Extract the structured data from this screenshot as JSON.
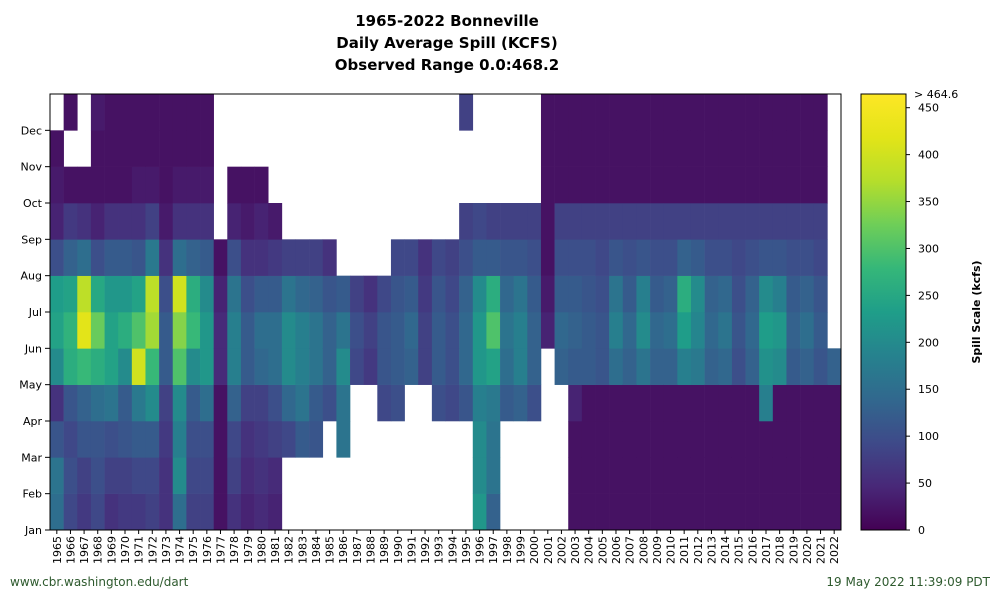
{
  "chart_data": {
    "type": "heatmap",
    "title_lines": [
      "1965-2022 Bonneville",
      "Daily Average Spill (KCFS)",
      "Observed Range 0.0:468.2"
    ],
    "x_categories": [
      "1965",
      "1966",
      "1967",
      "1968",
      "1969",
      "1970",
      "1971",
      "1972",
      "1973",
      "1974",
      "1975",
      "1976",
      "1977",
      "1978",
      "1979",
      "1980",
      "1981",
      "1982",
      "1983",
      "1984",
      "1985",
      "1986",
      "1987",
      "1988",
      "1989",
      "1990",
      "1991",
      "1992",
      "1993",
      "1994",
      "1995",
      "1996",
      "1997",
      "1998",
      "1999",
      "2000",
      "2001",
      "2002",
      "2003",
      "2004",
      "2005",
      "2006",
      "2007",
      "2008",
      "2009",
      "2010",
      "2011",
      "2012",
      "2013",
      "2014",
      "2015",
      "2016",
      "2017",
      "2018",
      "2019",
      "2020",
      "2021",
      "2022"
    ],
    "y_labels": [
      "Jan",
      "Feb",
      "Mar",
      "Apr",
      "May",
      "Jun",
      "Jul",
      "Aug",
      "Sep",
      "Oct",
      "Nov",
      "Dec"
    ],
    "colorbar": {
      "label": "Spill Scale (kcfs)",
      "ticks": [
        0,
        50,
        100,
        150,
        200,
        250,
        300,
        350,
        400,
        450
      ],
      "max_label": "> 464.6",
      "vmin": 0,
      "vmax": 464.6
    },
    "monthly_estimates": {
      "1965": [
        150,
        160,
        110,
        60,
        200,
        240,
        230,
        100,
        40,
        30,
        20,
        null
      ],
      "1966": [
        90,
        100,
        90,
        110,
        260,
        270,
        240,
        130,
        70,
        20,
        null,
        20
      ],
      "1967": [
        70,
        80,
        110,
        130,
        280,
        420,
        380,
        150,
        60,
        20,
        null,
        null
      ],
      "1968": [
        90,
        100,
        110,
        150,
        260,
        320,
        250,
        100,
        40,
        20,
        20,
        30
      ],
      "1969": [
        60,
        80,
        100,
        160,
        240,
        240,
        220,
        120,
        60,
        20,
        20,
        20
      ],
      "1970": [
        70,
        80,
        110,
        120,
        200,
        260,
        220,
        120,
        60,
        20,
        20,
        20
      ],
      "1971": [
        70,
        90,
        120,
        170,
        400,
        300,
        240,
        110,
        60,
        30,
        20,
        20
      ],
      "1972": [
        80,
        90,
        120,
        200,
        280,
        360,
        380,
        170,
        80,
        30,
        20,
        20
      ],
      "1973": [
        60,
        60,
        70,
        80,
        120,
        120,
        100,
        60,
        30,
        20,
        20,
        20
      ],
      "1974": [
        150,
        200,
        180,
        200,
        300,
        340,
        400,
        150,
        60,
        30,
        20,
        20
      ],
      "1975": [
        80,
        90,
        100,
        120,
        200,
        280,
        260,
        130,
        60,
        30,
        20,
        20
      ],
      "1976": [
        80,
        90,
        100,
        150,
        220,
        220,
        200,
        120,
        60,
        30,
        20,
        20
      ],
      "1977": [
        20,
        20,
        20,
        20,
        50,
        50,
        40,
        20,
        null,
        null,
        null,
        null
      ],
      "1978": [
        60,
        80,
        90,
        130,
        180,
        180,
        160,
        100,
        40,
        20,
        null,
        null
      ],
      "1979": [
        40,
        50,
        60,
        80,
        120,
        120,
        100,
        60,
        30,
        20,
        null,
        null
      ],
      "1980": [
        50,
        60,
        70,
        80,
        140,
        150,
        120,
        60,
        40,
        20,
        null,
        null
      ],
      "1981": [
        40,
        50,
        80,
        100,
        150,
        150,
        120,
        70,
        30,
        null,
        null,
        null
      ],
      "1982": [
        null,
        null,
        90,
        140,
        200,
        200,
        160,
        80,
        null,
        null,
        null,
        null
      ],
      "1983": [
        null,
        null,
        120,
        160,
        180,
        180,
        140,
        80,
        null,
        null,
        null,
        null
      ],
      "1984": [
        null,
        null,
        110,
        120,
        160,
        160,
        130,
        80,
        null,
        null,
        null,
        null
      ],
      "1985": [
        null,
        null,
        null,
        100,
        130,
        130,
        110,
        60,
        null,
        null,
        null,
        null
      ],
      "1986": [
        null,
        null,
        160,
        160,
        200,
        160,
        120,
        null,
        null,
        null,
        null,
        null
      ],
      "1987": [
        null,
        null,
        null,
        null,
        90,
        100,
        80,
        null,
        null,
        null,
        null,
        null
      ],
      "1988": [
        null,
        null,
        null,
        null,
        70,
        80,
        60,
        null,
        null,
        null,
        null,
        null
      ],
      "1989": [
        null,
        null,
        null,
        90,
        110,
        110,
        90,
        null,
        null,
        null,
        null,
        null
      ],
      "1990": [
        null,
        null,
        null,
        100,
        120,
        120,
        110,
        90,
        null,
        null,
        null,
        null
      ],
      "1991": [
        null,
        null,
        null,
        null,
        130,
        140,
        120,
        90,
        null,
        null,
        null,
        null
      ],
      "1992": [
        null,
        null,
        null,
        null,
        80,
        80,
        70,
        60,
        null,
        null,
        null,
        null
      ],
      "1993": [
        null,
        null,
        null,
        100,
        120,
        120,
        110,
        90,
        null,
        null,
        null,
        null
      ],
      "1994": [
        null,
        null,
        null,
        90,
        100,
        100,
        90,
        80,
        null,
        null,
        null,
        null
      ],
      "1995": [
        null,
        null,
        null,
        110,
        140,
        140,
        130,
        100,
        80,
        null,
        null,
        80
      ],
      "1996": [
        220,
        200,
        200,
        180,
        220,
        220,
        200,
        120,
        90,
        null,
        null,
        null
      ],
      "1997": [
        130,
        160,
        160,
        170,
        240,
        300,
        260,
        120,
        80,
        null,
        null,
        null
      ],
      "1998": [
        null,
        null,
        null,
        120,
        150,
        160,
        140,
        110,
        80,
        null,
        null,
        null
      ],
      "1999": [
        null,
        null,
        null,
        130,
        180,
        180,
        160,
        110,
        80,
        null,
        null,
        null
      ],
      "2000": [
        null,
        null,
        null,
        100,
        130,
        130,
        120,
        100,
        80,
        null,
        null,
        null
      ],
      "2001": [
        null,
        null,
        null,
        null,
        null,
        40,
        30,
        20,
        20,
        20,
        20,
        20
      ],
      "2002": [
        null,
        null,
        null,
        null,
        130,
        140,
        120,
        100,
        80,
        20,
        20,
        20
      ],
      "2003": [
        20,
        20,
        20,
        40,
        120,
        130,
        120,
        100,
        80,
        20,
        20,
        20
      ],
      "2004": [
        20,
        20,
        20,
        20,
        120,
        120,
        110,
        100,
        80,
        20,
        20,
        20
      ],
      "2005": [
        20,
        20,
        20,
        20,
        110,
        110,
        100,
        90,
        80,
        20,
        20,
        20
      ],
      "2006": [
        20,
        20,
        20,
        20,
        150,
        180,
        160,
        110,
        80,
        20,
        20,
        20
      ],
      "2007": [
        20,
        20,
        20,
        20,
        130,
        140,
        120,
        100,
        80,
        20,
        20,
        20
      ],
      "2008": [
        20,
        20,
        20,
        20,
        160,
        200,
        180,
        110,
        80,
        20,
        20,
        20
      ],
      "2009": [
        20,
        20,
        20,
        20,
        130,
        140,
        120,
        100,
        80,
        20,
        20,
        20
      ],
      "2010": [
        20,
        20,
        20,
        20,
        130,
        150,
        130,
        100,
        80,
        20,
        20,
        20
      ],
      "2011": [
        20,
        20,
        20,
        20,
        180,
        230,
        260,
        130,
        80,
        20,
        20,
        20
      ],
      "2012": [
        20,
        20,
        20,
        20,
        170,
        190,
        200,
        120,
        80,
        20,
        20,
        20
      ],
      "2013": [
        20,
        20,
        20,
        20,
        130,
        140,
        130,
        100,
        80,
        20,
        20,
        20
      ],
      "2014": [
        20,
        20,
        20,
        20,
        140,
        160,
        140,
        100,
        80,
        20,
        20,
        20
      ],
      "2015": [
        20,
        20,
        20,
        20,
        100,
        110,
        100,
        90,
        80,
        20,
        20,
        20
      ],
      "2016": [
        20,
        20,
        20,
        20,
        130,
        140,
        130,
        100,
        80,
        20,
        20,
        20
      ],
      "2017": [
        20,
        20,
        20,
        180,
        210,
        230,
        200,
        110,
        80,
        20,
        20,
        20
      ],
      "2018": [
        20,
        20,
        20,
        20,
        200,
        220,
        180,
        110,
        80,
        20,
        20,
        20
      ],
      "2019": [
        20,
        20,
        20,
        20,
        120,
        130,
        120,
        100,
        80,
        20,
        20,
        20
      ],
      "2020": [
        20,
        20,
        20,
        20,
        130,
        150,
        130,
        100,
        80,
        20,
        20,
        20
      ],
      "2021": [
        20,
        20,
        20,
        20,
        110,
        120,
        110,
        90,
        80,
        20,
        20,
        20
      ],
      "2022": [
        20,
        20,
        20,
        20,
        130,
        null,
        null,
        null,
        null,
        null,
        null,
        null
      ]
    }
  },
  "footer": {
    "left": "www.cbr.washington.edu/dart",
    "right": "19 May 2022 11:39:09 PDT"
  }
}
